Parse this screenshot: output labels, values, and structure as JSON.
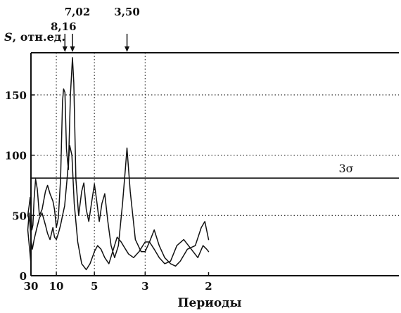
{
  "chart_data": {
    "type": "line",
    "ylabel_main": "S",
    "ylabel_rest": ", отн.ед.",
    "xlabel": "Периоды",
    "ylim": [
      0,
      185
    ],
    "x_domain_reciprocal": [
      1,
      30
    ],
    "x_scale": "reciprocal",
    "grid": true,
    "y_ticks": [
      {
        "value": 0,
        "label": "0"
      },
      {
        "value": 50,
        "label": "50"
      },
      {
        "value": 100,
        "label": "100"
      },
      {
        "value": 150,
        "label": "150"
      }
    ],
    "x_ticks": [
      {
        "value": 30,
        "label": "30"
      },
      {
        "value": 10,
        "label": "10"
      },
      {
        "value": 5,
        "label": "5"
      },
      {
        "value": 3,
        "label": "3"
      },
      {
        "value": 2,
        "label": "2"
      }
    ],
    "threshold": {
      "value": 81,
      "label": "3σ"
    },
    "peak_markers": [
      {
        "period": 8.16,
        "label": "8,16"
      },
      {
        "period": 7.02,
        "label": "7,02"
      },
      {
        "period": 3.5,
        "label": "3,50"
      }
    ],
    "series": [
      {
        "points": [
          [
            30,
            42
          ],
          [
            40,
            50
          ],
          [
            35,
            58
          ],
          [
            32,
            65
          ],
          [
            30,
            55
          ],
          [
            28,
            38
          ],
          [
            26,
            42
          ],
          [
            24,
            64
          ],
          [
            22,
            80
          ],
          [
            20,
            72
          ],
          [
            18,
            50
          ],
          [
            16,
            55
          ],
          [
            14,
            70
          ],
          [
            13,
            75
          ],
          [
            12,
            68
          ],
          [
            11,
            62
          ],
          [
            10.5,
            55
          ],
          [
            10,
            40
          ],
          [
            9.5,
            48
          ],
          [
            9,
            80
          ],
          [
            8.6,
            145
          ],
          [
            8.4,
            155
          ],
          [
            8.16,
            152
          ],
          [
            7.9,
            105
          ],
          [
            7.6,
            88
          ],
          [
            7.3,
            150
          ],
          [
            7.02,
            181
          ],
          [
            6.85,
            160
          ],
          [
            6.6,
            80
          ],
          [
            6.3,
            50
          ],
          [
            6.0,
            70
          ],
          [
            5.8,
            77
          ],
          [
            5.6,
            55
          ],
          [
            5.4,
            45
          ],
          [
            5.2,
            60
          ],
          [
            5.0,
            76
          ],
          [
            4.85,
            62
          ],
          [
            4.7,
            45
          ],
          [
            4.55,
            60
          ],
          [
            4.4,
            68
          ],
          [
            4.25,
            45
          ],
          [
            4.1,
            25
          ],
          [
            3.95,
            15
          ],
          [
            3.8,
            25
          ],
          [
            3.65,
            60
          ],
          [
            3.55,
            90
          ],
          [
            3.5,
            106
          ],
          [
            3.4,
            70
          ],
          [
            3.25,
            30
          ],
          [
            3.1,
            20
          ],
          [
            3.0,
            20
          ],
          [
            2.9,
            28
          ],
          [
            2.8,
            38
          ],
          [
            2.7,
            25
          ],
          [
            2.6,
            15
          ],
          [
            2.5,
            10
          ],
          [
            2.42,
            8
          ],
          [
            2.35,
            12
          ],
          [
            2.25,
            22
          ],
          [
            2.15,
            25
          ],
          [
            2.08,
            40
          ],
          [
            2.04,
            45
          ],
          [
            2.0,
            30
          ]
        ]
      },
      {
        "points": [
          [
            30,
            10
          ],
          [
            40,
            38
          ],
          [
            35,
            52
          ],
          [
            32,
            40
          ],
          [
            30,
            30
          ],
          [
            27,
            22
          ],
          [
            24,
            30
          ],
          [
            21,
            38
          ],
          [
            18,
            48
          ],
          [
            16,
            52
          ],
          [
            14,
            42
          ],
          [
            13,
            35
          ],
          [
            12,
            30
          ],
          [
            11,
            40
          ],
          [
            10.5,
            32
          ],
          [
            10,
            30
          ],
          [
            9.5,
            35
          ],
          [
            9,
            42
          ],
          [
            8.6,
            50
          ],
          [
            8.2,
            58
          ],
          [
            7.8,
            80
          ],
          [
            7.4,
            108
          ],
          [
            7.1,
            100
          ],
          [
            6.8,
            60
          ],
          [
            6.4,
            28
          ],
          [
            6.0,
            10
          ],
          [
            5.6,
            5
          ],
          [
            5.3,
            10
          ],
          [
            5.0,
            20
          ],
          [
            4.8,
            25
          ],
          [
            4.6,
            22
          ],
          [
            4.4,
            15
          ],
          [
            4.2,
            10
          ],
          [
            4.0,
            22
          ],
          [
            3.85,
            32
          ],
          [
            3.7,
            28
          ],
          [
            3.55,
            22
          ],
          [
            3.45,
            18
          ],
          [
            3.3,
            15
          ],
          [
            3.15,
            20
          ],
          [
            3.0,
            28
          ],
          [
            2.9,
            28
          ],
          [
            2.8,
            22
          ],
          [
            2.7,
            15
          ],
          [
            2.6,
            10
          ],
          [
            2.5,
            12
          ],
          [
            2.4,
            25
          ],
          [
            2.3,
            30
          ],
          [
            2.2,
            22
          ],
          [
            2.12,
            15
          ],
          [
            2.06,
            25
          ],
          [
            2.02,
            22
          ],
          [
            2.0,
            20
          ]
        ]
      }
    ]
  }
}
